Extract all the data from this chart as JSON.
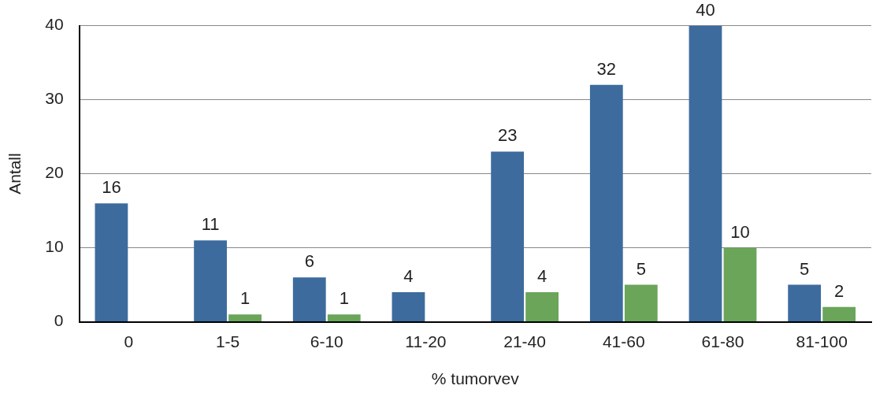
{
  "chart_data": {
    "type": "bar",
    "xlabel": "% tumorvev",
    "ylabel": "Antall",
    "categories": [
      "0",
      "1-5",
      "6-10",
      "11-20",
      "21-40",
      "41-60",
      "61-80",
      "81-100"
    ],
    "series": [
      {
        "color": "#3d6b9e",
        "values": [
          16,
          11,
          6,
          4,
          23,
          32,
          40,
          5
        ]
      },
      {
        "color": "#6aa55a",
        "values": [
          null,
          1,
          1,
          null,
          4,
          5,
          10,
          2
        ]
      }
    ],
    "ylim": [
      0,
      40
    ],
    "yticks": [
      0,
      10,
      20,
      30,
      40
    ],
    "grid": "y",
    "data_labels": true
  }
}
